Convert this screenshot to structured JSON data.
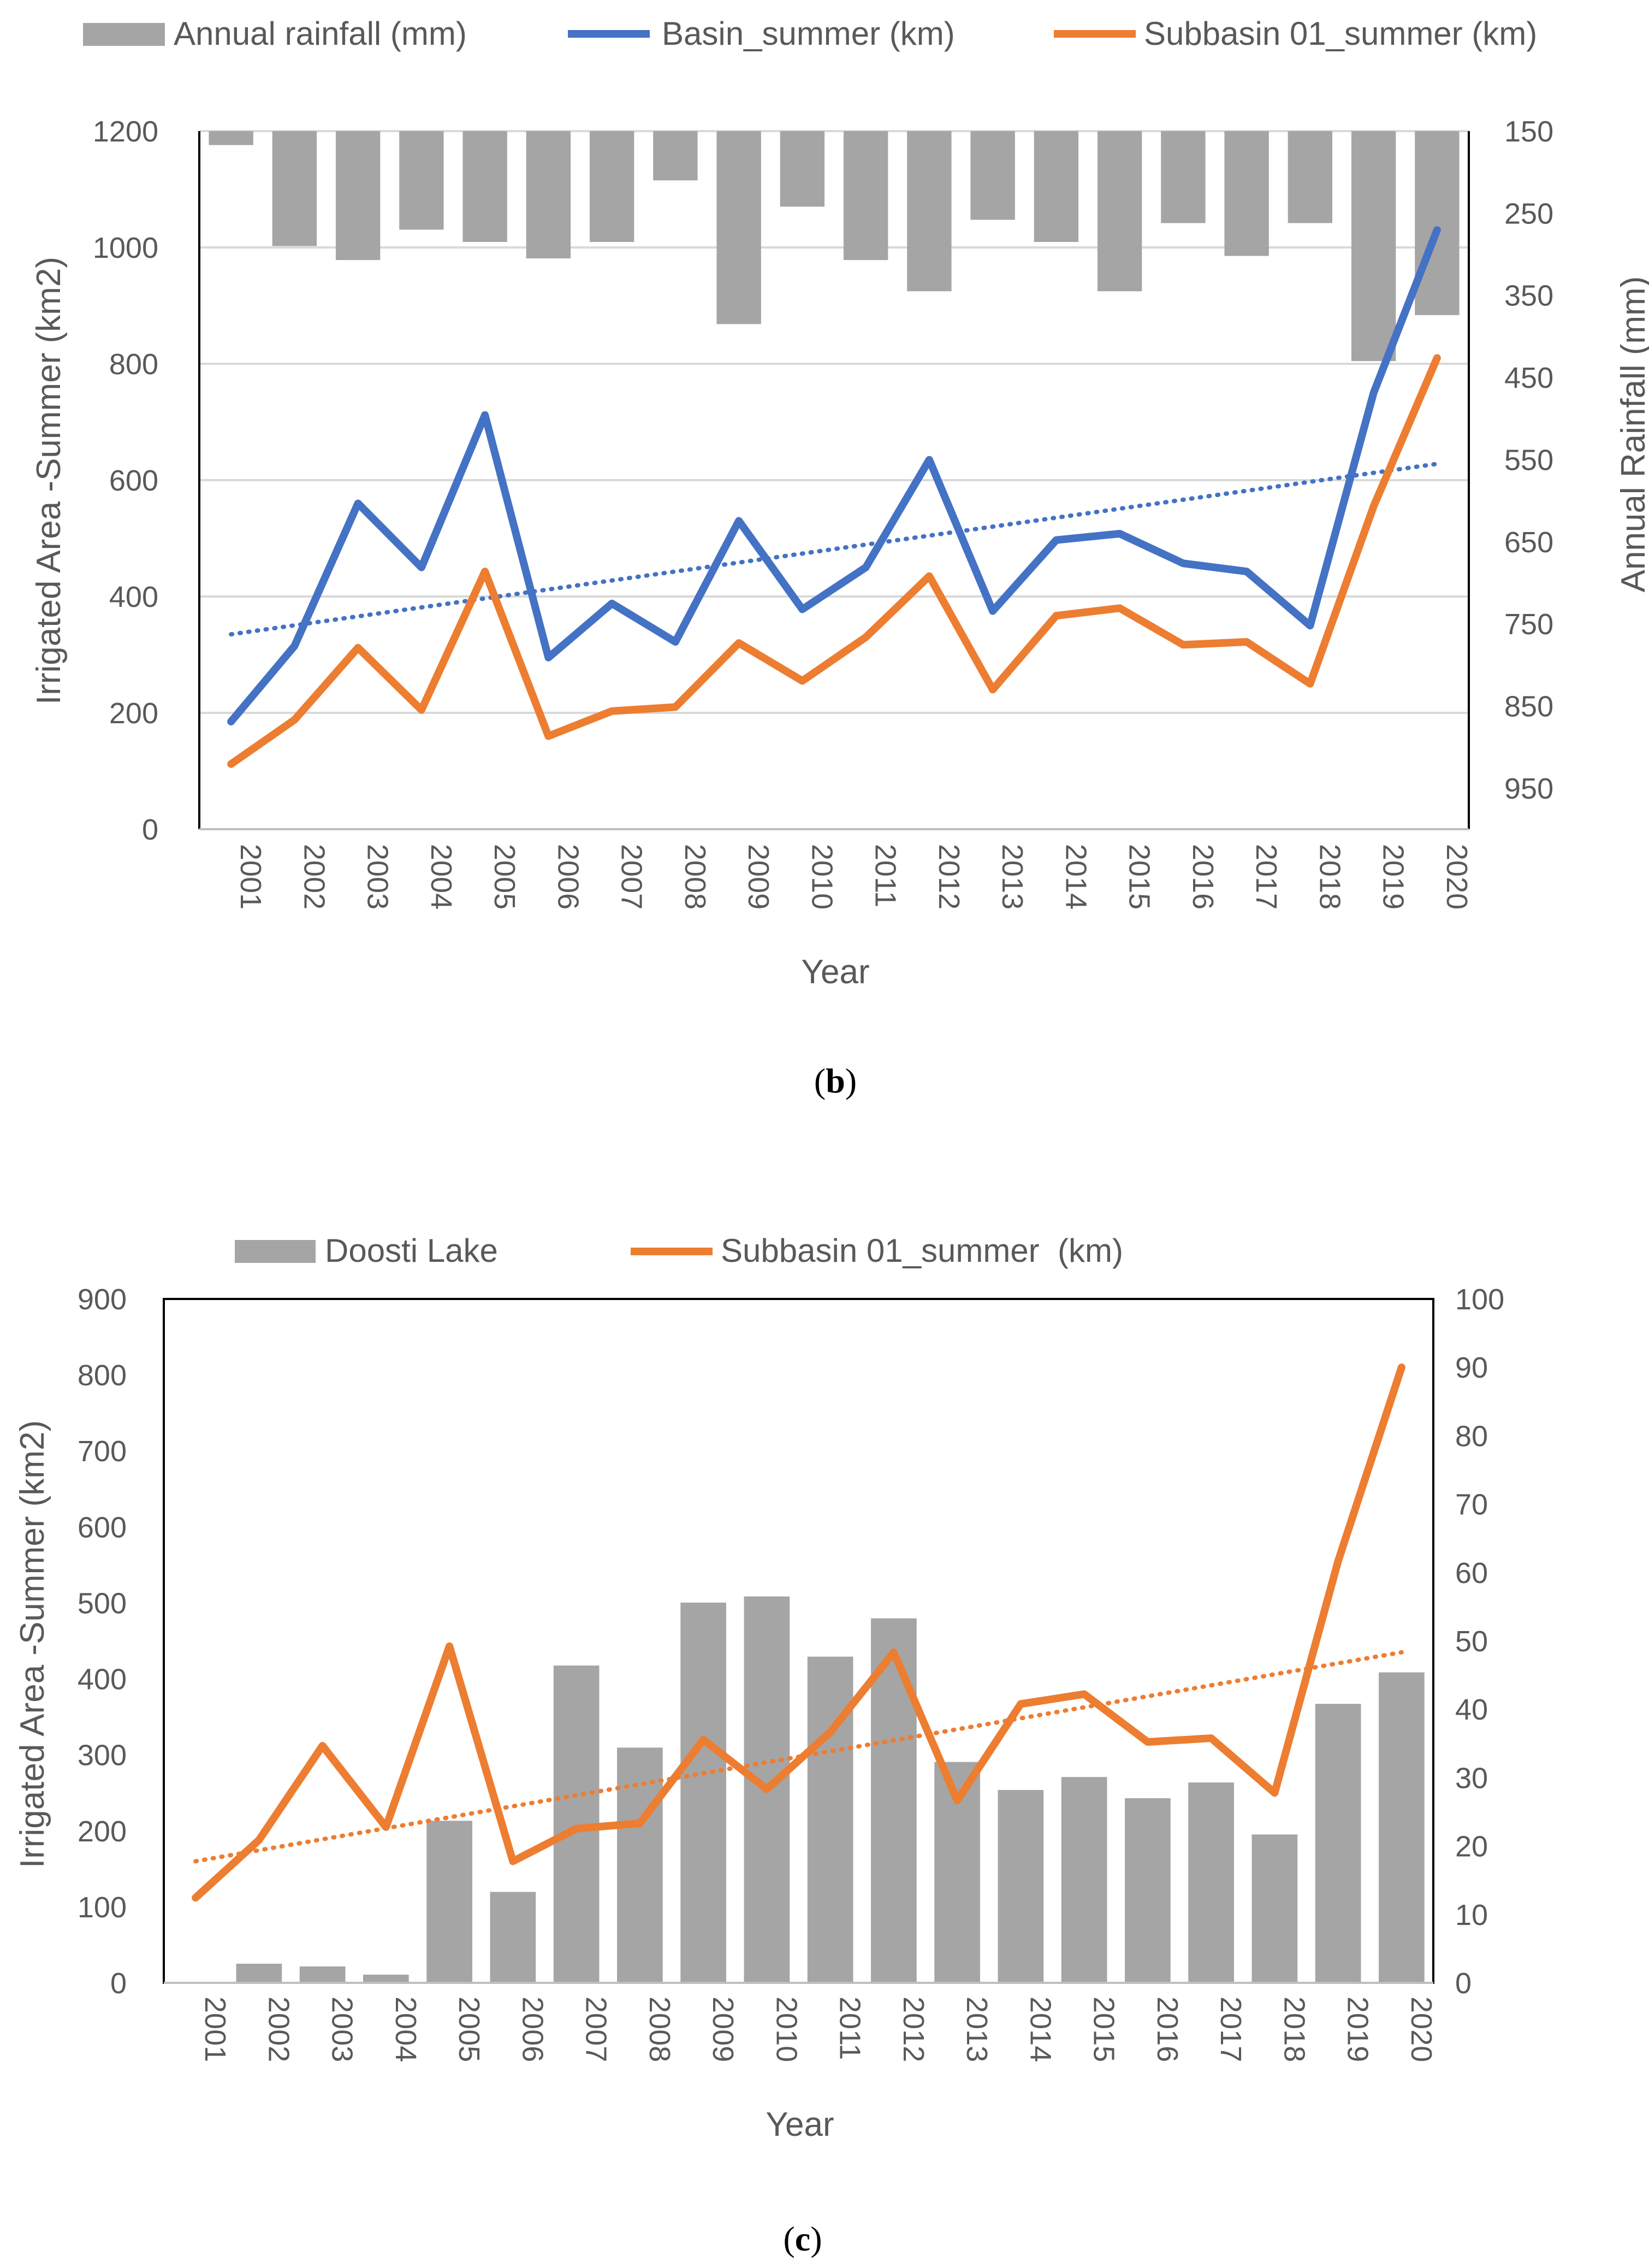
{
  "colors": {
    "bar": "#a5a5a5",
    "basin": "#4472c4",
    "subbasin": "#ed7d31",
    "grid": "#d9d9d9",
    "axis": "#000000",
    "text": "#595959"
  },
  "chart_data": [
    {
      "type": "bar+line",
      "panel": "b",
      "caption_letter": "b",
      "legend": [
        {
          "label": "Annual rainfall (mm)",
          "kind": "bar"
        },
        {
          "label": "Basin_summer (km)",
          "kind": "line"
        },
        {
          "label": "Subbasin 01_summer (km)",
          "kind": "line"
        }
      ],
      "categories": [
        "2001",
        "2002",
        "2003",
        "2004",
        "2005",
        "2006",
        "2007",
        "2008",
        "2009",
        "2010",
        "2011",
        "2012",
        "2013",
        "2014",
        "2015",
        "2016",
        "2017",
        "2018",
        "2019",
        "2020"
      ],
      "xlabel": "Year",
      "ylabel_left": "Irrigated Area -Summer (km2)",
      "ylabel_right": "Annual Rainfall (mm)",
      "ylim_left": [
        0,
        1200
      ],
      "yticks_left": [
        "0",
        "200",
        "400",
        "600",
        "800",
        "1000",
        "1200"
      ],
      "ylim_right_inverted": [
        150,
        1000
      ],
      "yticks_right": [
        "150",
        "250",
        "350",
        "450",
        "550",
        "650",
        "750",
        "850",
        "950"
      ],
      "bars": {
        "name": "Annual rainfall (mm)",
        "values": [
          167,
          290,
          307,
          270,
          285,
          305,
          285,
          210,
          385,
          242,
          307,
          345,
          258,
          285,
          345,
          262,
          302,
          262,
          430,
          374
        ]
      },
      "series": [
        {
          "name": "Basin_summer (km)",
          "values": [
            185,
            315,
            560,
            450,
            712,
            295,
            388,
            322,
            530,
            378,
            450,
            635,
            375,
            497,
            508,
            457,
            443,
            350,
            750,
            1030
          ],
          "trend": [
            335,
            628
          ]
        },
        {
          "name": "Subbasin 01_summer (km)",
          "values": [
            112,
            188,
            312,
            205,
            443,
            160,
            203,
            210,
            320,
            255,
            330,
            435,
            240,
            367,
            380,
            317,
            322,
            250,
            555,
            810
          ]
        }
      ]
    },
    {
      "type": "bar+line",
      "panel": "c",
      "caption_letter": "c",
      "legend": [
        {
          "label": "Doosti Lake",
          "kind": "bar"
        },
        {
          "label": "Subbasin 01_summer  (km)",
          "kind": "line"
        }
      ],
      "categories": [
        "2001",
        "2002",
        "2003",
        "2004",
        "2005",
        "2006",
        "2007",
        "2008",
        "2009",
        "2010",
        "2011",
        "2012",
        "2013",
        "2014",
        "2015",
        "2016",
        "2017",
        "2018",
        "2019",
        "2020"
      ],
      "xlabel": "Year",
      "ylabel_left": "Irrigated Area -Summer (km2)",
      "ylim_left": [
        0,
        900
      ],
      "yticks_left": [
        "0",
        "100",
        "200",
        "300",
        "400",
        "500",
        "600",
        "700",
        "800",
        "900"
      ],
      "ylim_right": [
        0,
        100
      ],
      "yticks_right": [
        "0",
        "10",
        "20",
        "30",
        "40",
        "50",
        "60",
        "70",
        "80",
        "90",
        "100"
      ],
      "bars": {
        "name": "Doosti Lake",
        "values": [
          0,
          2.8,
          2.4,
          1.2,
          23.7,
          13.3,
          46.4,
          34.4,
          55.6,
          56.5,
          47.7,
          53.3,
          32.3,
          28.2,
          30.1,
          27.0,
          29.3,
          21.7,
          40.8,
          45.4
        ]
      },
      "series": [
        {
          "name": "Subbasin 01_summer  (km)",
          "values": [
            112,
            188,
            312,
            205,
            443,
            160,
            203,
            210,
            320,
            255,
            330,
            435,
            240,
            367,
            380,
            317,
            322,
            250,
            555,
            810
          ],
          "trend": [
            160,
            435
          ]
        }
      ]
    }
  ]
}
